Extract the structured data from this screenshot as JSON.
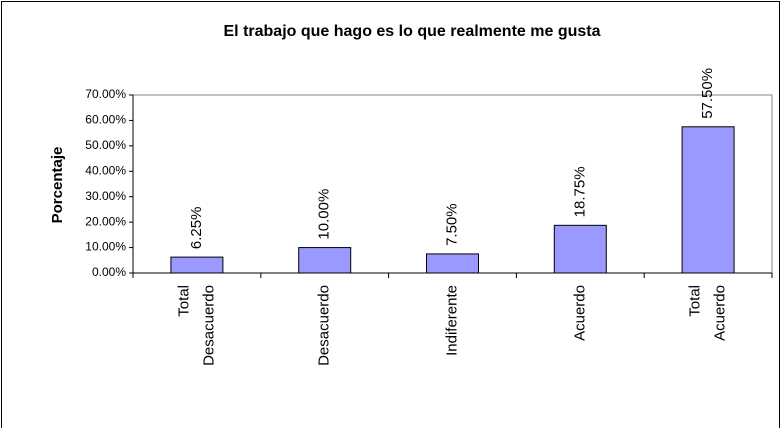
{
  "chart_data": {
    "type": "bar",
    "title": "El trabajo que hago es lo que realmente me gusta",
    "y_label": "Porcentaje",
    "categories": [
      "Total Desacuerdo",
      "Desacuerdo",
      "Indiferente",
      "Acuerdo",
      "Total Acuerdo"
    ],
    "values": [
      6.25,
      10,
      7.5,
      18.75,
      57.5
    ],
    "value_labels": [
      "6.25%",
      "10.00%",
      "7.50%",
      "18.75%",
      "57.50%"
    ],
    "color": "#9999ff",
    "ylim": [
      0,
      70
    ],
    "yticks": [
      {
        "value": 0,
        "label": "0.00%"
      },
      {
        "value": 10,
        "label": "10.00%"
      },
      {
        "value": 20,
        "label": "20.00%"
      },
      {
        "value": 30,
        "label": "30.00%"
      },
      {
        "value": 40,
        "label": "40.00%"
      },
      {
        "value": 50,
        "label": "50.00%"
      },
      {
        "value": 60,
        "label": "60.00%"
      },
      {
        "value": 70,
        "label": "70.00%"
      }
    ],
    "grid": false
  }
}
